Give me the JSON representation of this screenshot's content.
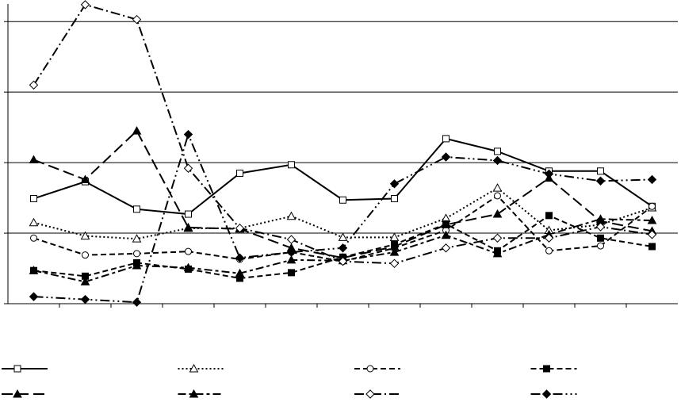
{
  "chart_data": {
    "type": "line",
    "categories": [
      null,
      null,
      null,
      null,
      null,
      null,
      null,
      null,
      null,
      null,
      null,
      null,
      null
    ],
    "ylim": [
      0,
      4.25
    ],
    "yticks": [
      0,
      1,
      2,
      3,
      4
    ],
    "grid": true,
    "legend": "bottom",
    "series": [
      {
        "color": "#000000",
        "marker": "square-open",
        "line_style": "solid",
        "values": [
          1.49,
          1.73,
          1.34,
          1.27,
          1.85,
          1.97,
          1.47,
          1.49,
          2.34,
          2.16,
          1.88,
          1.88,
          1.38
        ]
      },
      {
        "color": "#000000",
        "marker": "triangle-open",
        "line_style": "dotted",
        "values": [
          1.15,
          0.96,
          0.92,
          1.07,
          1.07,
          1.24,
          0.94,
          0.94,
          1.21,
          1.64,
          1.04,
          1.12,
          1.36
        ]
      },
      {
        "color": "#000000",
        "marker": "circle-open",
        "line_style": "dashed",
        "values": [
          0.93,
          0.69,
          0.71,
          0.74,
          0.63,
          0.73,
          0.6,
          0.79,
          1.04,
          1.53,
          0.75,
          0.82,
          1.38
        ]
      },
      {
        "color": "#000000",
        "marker": "square-filled",
        "line_style": "dashed",
        "values": [
          0.47,
          0.39,
          0.58,
          0.49,
          0.36,
          0.44,
          0.66,
          0.84,
          1.13,
          0.75,
          1.25,
          0.93,
          0.81
        ]
      },
      {
        "color": "#000000",
        "marker": "triangle-filled",
        "line_style": "long-dash",
        "values": [
          2.04,
          1.76,
          2.45,
          1.08,
          1.06,
          0.79,
          0.65,
          0.81,
          1.12,
          1.27,
          1.78,
          1.17,
          1.03
        ]
      },
      {
        "color": "#000000",
        "marker": "triangle-filled",
        "line_style": "long-short",
        "values": [
          0.47,
          0.31,
          0.54,
          0.51,
          0.43,
          0.62,
          0.61,
          0.73,
          0.97,
          0.71,
          0.98,
          1.2,
          1.18
        ]
      },
      {
        "color": "#000000",
        "marker": "diamond-open",
        "line_style": "dash-dot",
        "values": [
          3.1,
          4.24,
          4.03,
          1.92,
          1.07,
          0.91,
          0.6,
          0.57,
          0.79,
          0.93,
          0.93,
          1.09,
          0.98
        ]
      },
      {
        "color": "#000000",
        "marker": "diamond-filled",
        "line_style": "dash-dot-dot",
        "values": [
          0.1,
          0.06,
          0.02,
          2.4,
          0.65,
          0.73,
          0.79,
          1.7,
          2.08,
          2.03,
          1.84,
          1.74,
          1.76
        ]
      }
    ]
  }
}
